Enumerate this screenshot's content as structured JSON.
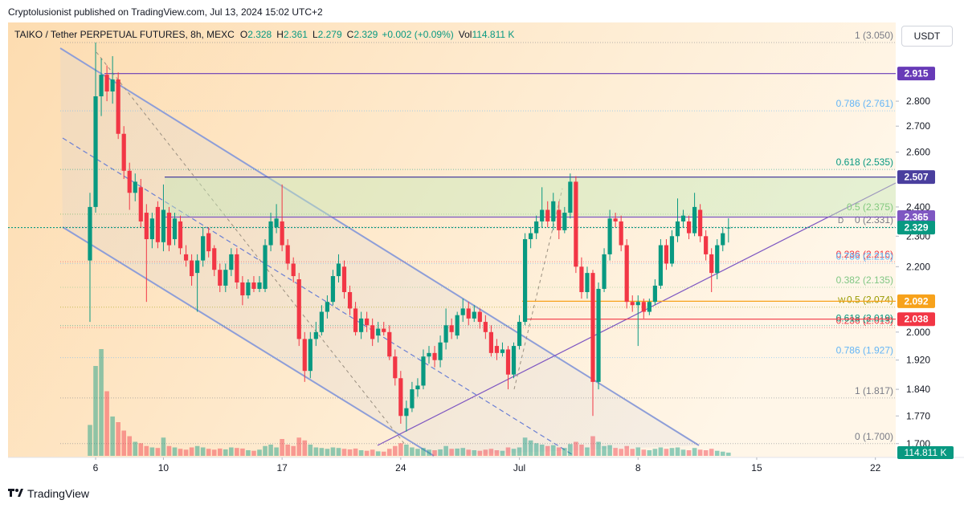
{
  "header": {
    "publisher": "Cryptolusionist published on TradingView.com, Jul 13, 2024 15:02 UTC+2"
  },
  "chart_data": {
    "type": "candlestick",
    "title": "TAIKO / Tether PERPETUAL FUTURES, 8h, MEXC",
    "legend": [
      {
        "key": "O",
        "value": "2.328"
      },
      {
        "key": "H",
        "value": "2.361"
      },
      {
        "key": "L",
        "value": "2.279"
      },
      {
        "key": "C",
        "value": "2.329"
      },
      {
        "key": "",
        "value": "+0.002 (+0.09%)"
      },
      {
        "key": "Vol",
        "value": "114.811 K"
      }
    ],
    "currency": "USDT",
    "up_color": "#089981",
    "down_color": "#f23645",
    "log_scale": true,
    "ylim": [
      1.67,
      3.133
    ],
    "yticks": [
      {
        "value": 1.7,
        "label": "1.700"
      },
      {
        "value": 1.77,
        "label": "1.770"
      },
      {
        "value": 1.84,
        "label": "1.840"
      },
      {
        "value": 1.92,
        "label": "1.920"
      },
      {
        "value": 2.0,
        "label": "2.000"
      },
      {
        "value": 2.2,
        "label": "2.200"
      },
      {
        "value": 2.3,
        "label": "2.300"
      },
      {
        "value": 2.4,
        "label": "2.400"
      },
      {
        "value": 2.6,
        "label": "2.600"
      },
      {
        "value": 2.7,
        "label": "2.700"
      },
      {
        "value": 2.8,
        "label": "2.800"
      }
    ],
    "xlim": [
      -14.5,
      142.6
    ],
    "xticks": [
      {
        "value": 1,
        "label": "6"
      },
      {
        "value": 13,
        "label": "10"
      },
      {
        "value": 34,
        "label": "17"
      },
      {
        "value": 55,
        "label": "24"
      },
      {
        "value": 76,
        "label": "Jul"
      },
      {
        "value": 97,
        "label": "8"
      },
      {
        "value": 118,
        "label": "15"
      },
      {
        "value": 139,
        "label": "22"
      }
    ],
    "open": [
      2.22,
      2.4,
      2.82,
      2.91,
      2.84,
      2.89,
      2.67,
      2.53,
      2.45,
      2.47,
      2.38,
      2.29,
      2.4,
      2.28,
      2.38,
      2.29,
      2.35,
      2.24,
      2.22,
      2.18,
      2.22,
      2.31,
      2.26,
      2.19,
      2.14,
      2.19,
      2.24,
      2.15,
      2.11,
      2.15,
      2.13,
      2.13,
      2.27,
      2.33,
      2.35,
      2.27,
      2.21,
      2.16,
      1.98,
      1.89,
      1.98,
      2.0,
      2.06,
      2.09,
      2.17,
      2.2,
      2.12,
      2.07,
      2.0,
      2.04,
      2.02,
      1.99,
      2.01,
      2.0,
      1.93,
      1.87,
      1.77,
      1.79,
      1.84,
      1.85,
      1.93,
      1.94,
      1.92,
      1.97,
      2.02,
      1.99,
      2.05,
      2.07,
      2.04,
      2.06,
      2.03,
      2.0,
      1.96,
      1.94,
      1.95,
      1.88,
      1.96,
      2.03,
      2.29,
      2.31,
      2.35,
      2.39,
      2.35,
      2.39,
      2.32,
      2.38,
      2.49,
      2.2,
      2.12,
      2.18,
      1.86,
      2.13,
      2.24,
      2.36,
      2.35,
      2.27,
      2.09,
      2.08,
      2.09,
      2.06,
      2.09,
      2.14,
      2.27,
      2.21,
      2.3,
      2.35,
      2.35,
      2.31,
      2.39,
      2.3,
      2.24,
      2.18,
      2.27,
      2.328
    ],
    "high": [
      2.45,
      3.05,
      2.98,
      2.95,
      2.99,
      2.92,
      2.7,
      2.56,
      2.52,
      2.5,
      2.41,
      2.38,
      2.42,
      2.48,
      2.4,
      2.38,
      2.37,
      2.27,
      2.24,
      2.24,
      2.33,
      2.33,
      2.27,
      2.21,
      2.21,
      2.26,
      2.26,
      2.17,
      2.16,
      2.17,
      2.17,
      2.29,
      2.38,
      2.41,
      2.48,
      2.29,
      2.23,
      2.18,
      2.0,
      2.0,
      2.03,
      2.08,
      2.11,
      2.19,
      2.24,
      2.22,
      2.14,
      2.09,
      2.06,
      2.06,
      2.04,
      2.03,
      2.03,
      2.02,
      1.95,
      1.89,
      1.81,
      1.86,
      1.87,
      1.95,
      1.96,
      1.96,
      1.99,
      2.07,
      2.04,
      2.06,
      2.1,
      2.09,
      2.08,
      2.07,
      2.05,
      2.02,
      1.98,
      1.97,
      1.96,
      1.97,
      2.05,
      2.31,
      2.33,
      2.37,
      2.47,
      2.42,
      2.45,
      2.42,
      2.4,
      2.52,
      2.51,
      2.23,
      2.2,
      2.19,
      2.15,
      2.26,
      2.39,
      2.38,
      2.37,
      2.29,
      2.11,
      2.11,
      2.1,
      2.1,
      2.16,
      2.29,
      2.29,
      2.32,
      2.43,
      2.39,
      2.37,
      2.45,
      2.41,
      2.32,
      2.26,
      2.29,
      2.33,
      2.361
    ],
    "low": [
      2.03,
      2.38,
      2.74,
      2.8,
      2.79,
      2.65,
      2.5,
      2.39,
      2.42,
      2.33,
      2.09,
      2.26,
      2.26,
      2.25,
      2.25,
      2.27,
      2.24,
      2.2,
      2.14,
      2.06,
      2.2,
      2.23,
      2.17,
      2.12,
      2.12,
      2.17,
      2.13,
      2.08,
      2.1,
      2.12,
      2.12,
      2.12,
      2.25,
      2.31,
      2.25,
      2.19,
      2.15,
      1.96,
      1.86,
      1.87,
      1.96,
      1.99,
      2.04,
      2.08,
      2.15,
      2.1,
      2.05,
      1.99,
      1.98,
      2.0,
      1.96,
      1.97,
      1.99,
      1.92,
      1.85,
      1.75,
      1.73,
      1.78,
      1.82,
      1.84,
      1.91,
      1.9,
      1.9,
      1.95,
      1.98,
      1.98,
      2.03,
      2.02,
      2.03,
      2.01,
      1.98,
      1.93,
      1.92,
      1.93,
      1.84,
      1.87,
      1.95,
      2.02,
      2.26,
      2.29,
      2.33,
      2.33,
      2.32,
      2.29,
      2.31,
      2.36,
      2.18,
      2.1,
      2.1,
      1.77,
      1.84,
      2.12,
      2.22,
      2.33,
      2.25,
      2.07,
      2.06,
      1.96,
      2.04,
      2.05,
      2.08,
      2.13,
      2.19,
      2.2,
      2.28,
      2.33,
      2.29,
      2.3,
      2.28,
      2.22,
      2.12,
      2.16,
      2.25,
      2.279
    ],
    "close": [
      2.4,
      2.82,
      2.91,
      2.84,
      2.89,
      2.67,
      2.53,
      2.45,
      2.49,
      2.35,
      2.29,
      2.36,
      2.28,
      2.39,
      2.27,
      2.36,
      2.26,
      2.22,
      2.17,
      2.22,
      2.3,
      2.25,
      2.19,
      2.14,
      2.19,
      2.24,
      2.15,
      2.11,
      2.15,
      2.13,
      2.15,
      2.27,
      2.35,
      2.36,
      2.27,
      2.21,
      2.17,
      1.98,
      1.89,
      1.98,
      2.0,
      2.06,
      2.09,
      2.17,
      2.21,
      2.12,
      2.07,
      2.0,
      2.04,
      2.02,
      1.98,
      2.01,
      2.0,
      1.93,
      1.87,
      1.77,
      1.79,
      1.84,
      1.85,
      1.93,
      1.94,
      1.92,
      1.97,
      2.02,
      2.0,
      2.05,
      2.07,
      2.04,
      2.06,
      2.03,
      2.0,
      1.94,
      1.94,
      1.95,
      1.88,
      1.96,
      2.03,
      2.29,
      2.31,
      2.35,
      2.39,
      2.35,
      2.42,
      2.32,
      2.38,
      2.49,
      2.2,
      2.12,
      2.18,
      1.86,
      2.13,
      2.24,
      2.36,
      2.35,
      2.27,
      2.09,
      2.08,
      2.09,
      2.06,
      2.09,
      2.14,
      2.27,
      2.21,
      2.3,
      2.35,
      2.37,
      2.31,
      2.4,
      2.3,
      2.24,
      2.18,
      2.27,
      2.31,
      2.329
    ],
    "volume": [
      1100,
      3200,
      3800,
      2300,
      1400,
      1200,
      900,
      700,
      500,
      450,
      350,
      300,
      280,
      650,
      350,
      300,
      250,
      220,
      300,
      350,
      300,
      250,
      220,
      260,
      230,
      300,
      280,
      260,
      200,
      180,
      220,
      350,
      400,
      300,
      600,
      400,
      350,
      650,
      550,
      400,
      300,
      280,
      250,
      300,
      280,
      250,
      230,
      260,
      200,
      180,
      220,
      160,
      150,
      250,
      350,
      450,
      400,
      300,
      250,
      280,
      220,
      200,
      230,
      350,
      250,
      260,
      280,
      220,
      200,
      180,
      220,
      250,
      200,
      180,
      300,
      250,
      300,
      650,
      550,
      450,
      400,
      350,
      380,
      300,
      280,
      420,
      500,
      400,
      300,
      700,
      500,
      350,
      380,
      280,
      250,
      350,
      250,
      300,
      220,
      200,
      250,
      300,
      250,
      280,
      300,
      220,
      200,
      280,
      220,
      200,
      250,
      180,
      150,
      114.811
    ],
    "volume_label": "114.811 K",
    "fib_levels": [
      {
        "label": "1 (3.050)",
        "price": 3.05,
        "color": "#787b86"
      },
      {
        "label": "0.786 (2.761)",
        "price": 2.761,
        "color": "#64b5f6"
      },
      {
        "label": "0.618 (2.535)",
        "price": 2.535,
        "color": "#089981"
      },
      {
        "label": "0.5 (2.375)",
        "price": 2.375,
        "color": "#4caf50"
      },
      {
        "label": "0 (2.331)",
        "price": 2.331,
        "color": "#787b86",
        "marker": "D"
      },
      {
        "label": "0.236 (2.216)",
        "price": 2.216,
        "color": "#f23645"
      },
      {
        "label": "0.786 (2.210)",
        "price": 2.21,
        "color": "#64b5f6"
      },
      {
        "label": "0.382 (2.135)",
        "price": 2.135,
        "color": "#81c784"
      },
      {
        "label": "0.5 (2.074)",
        "price": 2.074,
        "color": "#9a9a00",
        "marker": "W"
      },
      {
        "label": "0.236 (2.013)",
        "price": 2.013,
        "color": "#f23645"
      },
      {
        "label": "0.618 (2.019)",
        "price": 2.019,
        "color": "#089981"
      },
      {
        "label": "0.786 (1.927)",
        "price": 1.927,
        "color": "#64b5f6"
      },
      {
        "label": "1 (1.817)",
        "price": 1.817,
        "color": "#787b86"
      },
      {
        "label": "0 (1.700)",
        "price": 1.7,
        "color": "#787b86"
      }
    ],
    "price_tags": [
      {
        "value": 2.915,
        "color": "#673ab7"
      },
      {
        "value": 2.507,
        "color": "#4a3f9e"
      },
      {
        "value": 2.365,
        "color": "#7e57c2"
      },
      {
        "value": 2.329,
        "color": "#089981"
      },
      {
        "value": 2.092,
        "color": "#f7a21b"
      },
      {
        "value": 2.038,
        "color": "#f23645"
      }
    ]
  },
  "footer": {
    "brand": "TradingView"
  }
}
